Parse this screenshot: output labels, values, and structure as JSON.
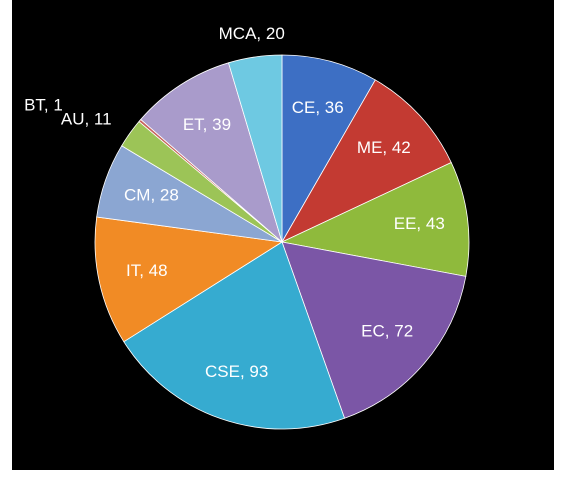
{
  "chart_data": {
    "type": "pie",
    "categories": [
      "CE",
      "ME",
      "EE",
      "EC",
      "CSE",
      "IT",
      "CM",
      "AU",
      "BT",
      "ET",
      "MCA"
    ],
    "values": [
      36,
      42,
      43,
      72,
      93,
      48,
      28,
      11,
      1,
      39,
      20
    ],
    "value_labels": [
      "CE, 36",
      "ME, 42",
      "EE, 43",
      "EC, 72",
      "CSE, 93",
      "IT, 48",
      "CM, 28",
      "AU, 11",
      "BT, 1",
      "ET, 39",
      "MCA, 20"
    ],
    "colors": [
      "#3d6fc4",
      "#c33a32",
      "#8fba3c",
      "#7b56a6",
      "#36abd0",
      "#f18b25",
      "#8ba6d2",
      "#9cc457",
      "#c7645e",
      "#a99bcb",
      "#6ec9e2"
    ]
  }
}
